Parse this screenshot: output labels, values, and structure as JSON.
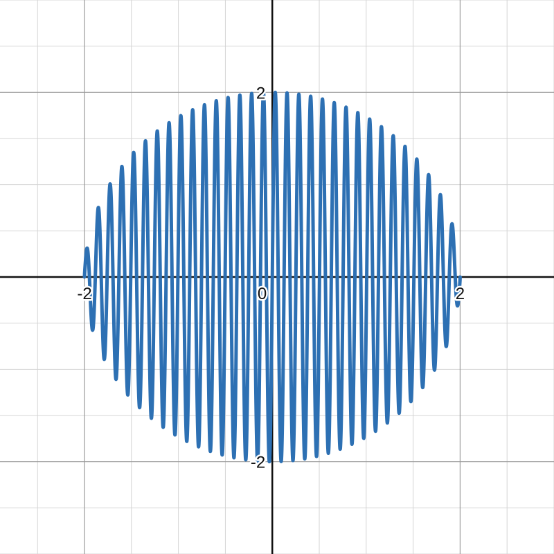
{
  "chart_data": {
    "type": "line",
    "title": "",
    "xlabel": "",
    "ylabel": "",
    "xlim": [
      -2.9,
      3.0
    ],
    "ylim": [
      -3.0,
      3.0
    ],
    "grid": true,
    "minor_grid_step": 0.5,
    "major_grid_step": 2,
    "x_ticks": [
      {
        "value": -2,
        "label": "-2"
      },
      {
        "value": 0,
        "label": "0"
      },
      {
        "value": 2,
        "label": "2"
      }
    ],
    "y_ticks": [
      {
        "value": 2,
        "label": "2"
      },
      {
        "value": -2,
        "label": "-2"
      }
    ],
    "series": [
      {
        "function": "y = sqrt(4 - x^2) * sin(50x)",
        "x_range": [
          -2,
          2
        ],
        "frequency": 50,
        "color": "#2d70b3"
      }
    ]
  },
  "colors": {
    "curve": "#2d70b3",
    "axis": "#111111",
    "major_grid": "#9a9a9a",
    "minor_grid": "#d4d4d4",
    "background": "#ffffff"
  }
}
